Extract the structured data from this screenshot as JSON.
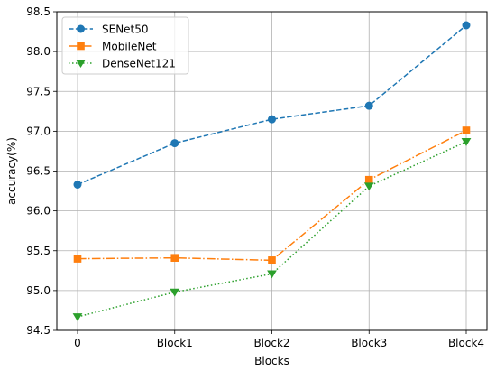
{
  "chart_data": {
    "type": "line",
    "xlabel": "Blocks",
    "ylabel": "accuracy(%)",
    "categories": [
      "0",
      "Block1",
      "Block2",
      "Block3",
      "Block4"
    ],
    "ylim": [
      94.5,
      98.5
    ],
    "yticks": [
      "94.5",
      "95.0",
      "95.5",
      "96.0",
      "96.5",
      "97.0",
      "97.5",
      "98.0",
      "98.5"
    ],
    "grid": true,
    "legend": "top-left",
    "series": [
      {
        "name": "SENet50",
        "values": [
          96.33,
          96.85,
          97.15,
          97.32,
          98.33
        ],
        "color": "#1f77b4",
        "linestyle": "dashed",
        "marker": "circle"
      },
      {
        "name": "MobileNet",
        "values": [
          95.4,
          95.41,
          95.38,
          96.39,
          97.01
        ],
        "color": "#ff7f0e",
        "linestyle": "dashdot",
        "marker": "square"
      },
      {
        "name": "DenseNet121",
        "values": [
          94.67,
          94.98,
          95.21,
          96.31,
          96.87
        ],
        "color": "#2ca02c",
        "linestyle": "dotted",
        "marker": "triangle-down"
      }
    ]
  }
}
